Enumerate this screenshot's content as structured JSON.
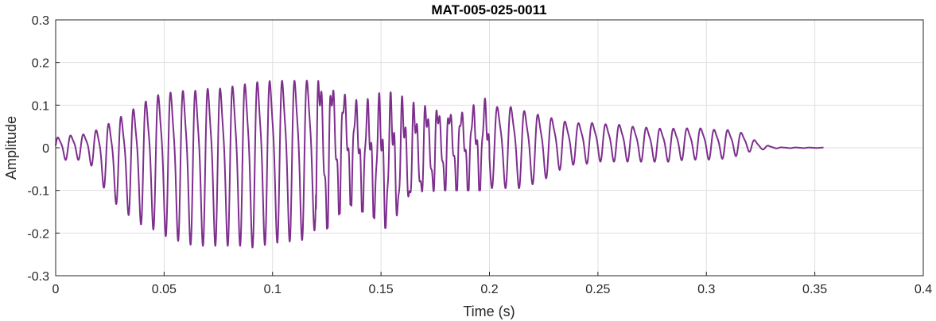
{
  "chart_data": {
    "type": "line",
    "title": "MAT-005-025-0011",
    "xlabel": "Time (s)",
    "ylabel": "Amplitude",
    "xlim": [
      0,
      0.4
    ],
    "ylim": [
      -0.3,
      0.3
    ],
    "xticks": [
      0,
      0.05,
      0.1,
      0.15,
      0.2,
      0.25,
      0.3,
      0.35,
      0.4
    ],
    "xtick_labels": [
      "0",
      "0.05",
      "0.1",
      "0.15",
      "0.2",
      "0.25",
      "0.3",
      "0.35",
      "0.4"
    ],
    "yticks": [
      -0.3,
      -0.2,
      -0.1,
      0,
      0.1,
      0.2,
      0.3
    ],
    "ytick_labels": [
      "-0.3",
      "-0.2",
      "-0.1",
      "0",
      "0.1",
      "0.2",
      "0.3"
    ],
    "grid": true,
    "series": [
      {
        "color": "#7E2F8E",
        "signal_end_time": 0.354,
        "envelope": {
          "t": [
            0,
            0.005,
            0.01,
            0.015,
            0.02,
            0.025,
            0.03,
            0.035,
            0.04,
            0.045,
            0.05,
            0.055,
            0.06,
            0.065,
            0.07,
            0.075,
            0.08,
            0.085,
            0.09,
            0.095,
            0.1,
            0.105,
            0.11,
            0.115,
            0.12,
            0.125,
            0.13,
            0.135,
            0.14,
            0.145,
            0.15,
            0.155,
            0.16,
            0.165,
            0.17,
            0.175,
            0.18,
            0.185,
            0.19,
            0.195,
            0.2,
            0.205,
            0.21,
            0.215,
            0.22,
            0.225,
            0.23,
            0.235,
            0.24,
            0.245,
            0.25,
            0.255,
            0.26,
            0.265,
            0.27,
            0.275,
            0.28,
            0.285,
            0.29,
            0.295,
            0.3,
            0.305,
            0.31,
            0.315,
            0.32,
            0.325,
            0.33,
            0.335,
            0.354
          ],
          "upper": [
            0.03,
            0.035,
            0.038,
            0.04,
            0.06,
            0.08,
            0.1,
            0.12,
            0.14,
            0.16,
            0.17,
            0.175,
            0.18,
            0.18,
            0.185,
            0.185,
            0.19,
            0.195,
            0.2,
            0.205,
            0.205,
            0.205,
            0.205,
            0.205,
            0.2,
            0.19,
            0.17,
            0.14,
            0.12,
            0.12,
            0.13,
            0.13,
            0.12,
            0.11,
            0.11,
            0.11,
            0.105,
            0.1,
            0.1,
            0.12,
            0.12,
            0.12,
            0.12,
            0.11,
            0.105,
            0.09,
            0.085,
            0.075,
            0.07,
            0.07,
            0.07,
            0.065,
            0.065,
            0.06,
            0.06,
            0.055,
            0.055,
            0.055,
            0.055,
            0.055,
            0.055,
            0.05,
            0.05,
            0.045,
            0.03,
            0.01,
            0.004,
            0.001,
            0.0005
          ],
          "lower": [
            -0.03,
            -0.03,
            -0.03,
            -0.03,
            -0.08,
            -0.12,
            -0.15,
            -0.17,
            -0.19,
            -0.2,
            -0.215,
            -0.225,
            -0.235,
            -0.24,
            -0.24,
            -0.24,
            -0.24,
            -0.24,
            -0.245,
            -0.24,
            -0.235,
            -0.23,
            -0.23,
            -0.225,
            -0.2,
            -0.19,
            -0.16,
            -0.13,
            -0.15,
            -0.15,
            -0.19,
            -0.185,
            -0.15,
            -0.13,
            -0.11,
            -0.1,
            -0.1,
            -0.1,
            -0.1,
            -0.1,
            -0.1,
            -0.1,
            -0.1,
            -0.1,
            -0.09,
            -0.08,
            -0.06,
            -0.05,
            -0.04,
            -0.04,
            -0.035,
            -0.035,
            -0.035,
            -0.035,
            -0.035,
            -0.035,
            -0.035,
            -0.035,
            -0.03,
            -0.03,
            -0.03,
            -0.03,
            -0.025,
            -0.02,
            -0.01,
            -0.005,
            -0.002,
            -0.001,
            -0.0005
          ]
        }
      }
    ]
  }
}
